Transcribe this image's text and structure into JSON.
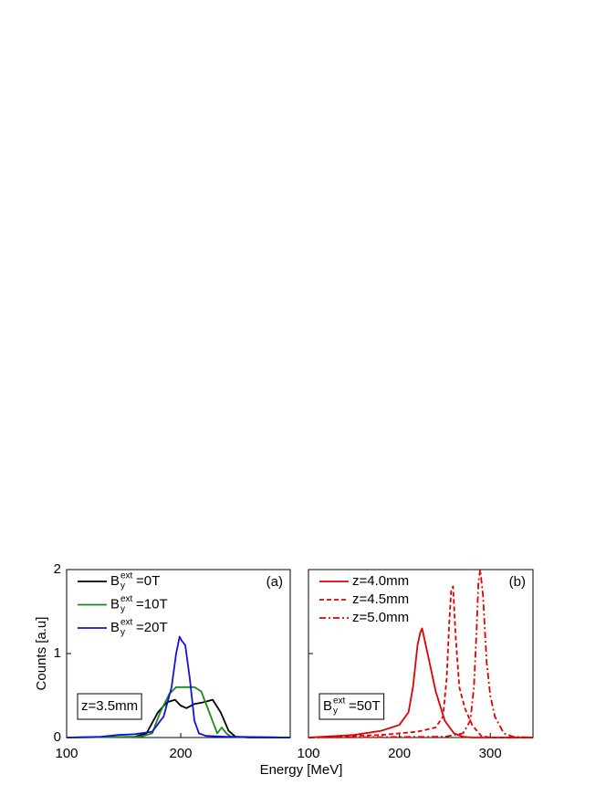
{
  "chart_data": [
    {
      "type": "line",
      "annotation": "(a)",
      "box_label": "z=3.5mm",
      "ylabel": "Counts [a.u]",
      "xlabel": "Energy [MeV]",
      "xlim": [
        100,
        296
      ],
      "ylim": [
        0,
        2
      ],
      "xticks": [
        100,
        200
      ],
      "yticks": [
        0,
        1,
        2
      ],
      "ytick_labels": true,
      "series": [
        {
          "name": {
            "main": "B",
            "sup": "ext",
            "sub": "y",
            "rest": "=0T"
          },
          "color": "#000000",
          "dash": "solid",
          "x": [
            100,
            160,
            170,
            180,
            188,
            195,
            200,
            205,
            212,
            220,
            228,
            235,
            242,
            248,
            260,
            296
          ],
          "values": [
            0,
            0.01,
            0.05,
            0.3,
            0.42,
            0.45,
            0.38,
            0.35,
            0.4,
            0.42,
            0.45,
            0.3,
            0.08,
            0.01,
            0,
            0
          ]
        },
        {
          "name": {
            "main": "B",
            "sup": "ext",
            "sub": "y",
            "rest": "=10T"
          },
          "color": "#1a8a1a",
          "dash": "solid",
          "x": [
            100,
            165,
            175,
            182,
            190,
            196,
            205,
            212,
            218,
            225,
            232,
            236,
            240,
            244,
            296
          ],
          "values": [
            0,
            0.01,
            0.05,
            0.3,
            0.52,
            0.6,
            0.6,
            0.6,
            0.55,
            0.3,
            0.05,
            0.12,
            0.05,
            0.01,
            0
          ]
        },
        {
          "name": {
            "main": "B",
            "sup": "ext",
            "sub": "y",
            "rest": "=20T"
          },
          "color": "#1010e0",
          "dash": "solid",
          "x": [
            100,
            130,
            145,
            160,
            175,
            185,
            192,
            196,
            199,
            201,
            204,
            208,
            212,
            216,
            222,
            240,
            296
          ],
          "values": [
            0,
            0.01,
            0.03,
            0.04,
            0.07,
            0.25,
            0.6,
            1.0,
            1.2,
            1.15,
            1.1,
            0.7,
            0.2,
            0.05,
            0.02,
            0.01,
            0
          ]
        }
      ]
    },
    {
      "type": "line",
      "annotation": "(b)",
      "box_label": {
        "main": "B",
        "sup": "ext",
        "sub": "y",
        "rest": "=50T"
      },
      "xlim": [
        100,
        347
      ],
      "ylim": [
        0,
        2
      ],
      "xticks": [
        100,
        200,
        300
      ],
      "yticks": [
        0,
        1,
        2
      ],
      "ytick_labels": false,
      "series": [
        {
          "name": "z=4.0mm",
          "color": "#e00000",
          "dash": "solid",
          "x": [
            100,
            150,
            180,
            200,
            210,
            215,
            220,
            223,
            225,
            228,
            233,
            240,
            250,
            260,
            270,
            280,
            347
          ],
          "values": [
            0,
            0.03,
            0.08,
            0.15,
            0.3,
            0.6,
            1.1,
            1.25,
            1.3,
            1.15,
            0.9,
            0.55,
            0.2,
            0.05,
            0.01,
            0,
            0
          ]
        },
        {
          "name": "z=4.5mm",
          "color": "#e00000",
          "dash": "dashed",
          "x": [
            100,
            180,
            220,
            240,
            248,
            252,
            255,
            257,
            259,
            262,
            266,
            272,
            280,
            290,
            300,
            347
          ],
          "values": [
            0,
            0.03,
            0.07,
            0.12,
            0.25,
            0.7,
            1.4,
            1.75,
            1.8,
            1.2,
            0.6,
            0.35,
            0.15,
            0.02,
            0,
            0
          ]
        },
        {
          "name": "z=5.0mm",
          "color": "#e00000",
          "dash": "dashdot",
          "x": [
            100,
            250,
            270,
            278,
            282,
            285,
            287,
            289,
            292,
            296,
            300,
            305,
            315,
            325,
            347
          ],
          "values": [
            0,
            0.01,
            0.05,
            0.2,
            0.6,
            1.3,
            1.85,
            2.0,
            1.7,
            0.9,
            0.5,
            0.25,
            0.05,
            0.01,
            0
          ]
        }
      ]
    }
  ]
}
